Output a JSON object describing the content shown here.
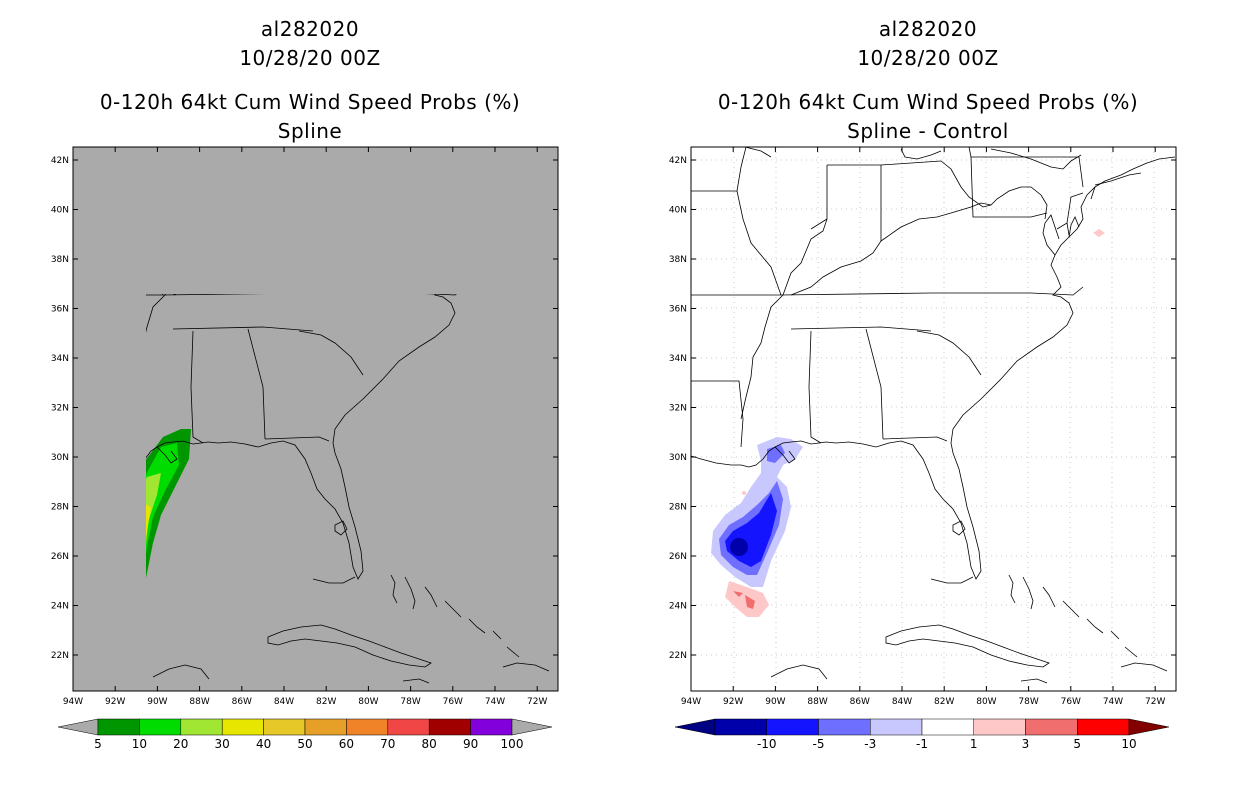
{
  "left_panel": {
    "storm_id": "al282020",
    "date": "10/28/20 00Z",
    "product": "0-120h 64kt Cum Wind Speed Probs (%)",
    "subtitle": "Spline",
    "colorbar": {
      "labels": [
        "5",
        "10",
        "20",
        "30",
        "40",
        "50",
        "60",
        "70",
        "80",
        "90",
        "100"
      ],
      "colors": [
        "#009600",
        "#00dc00",
        "#a0e632",
        "#e6e600",
        "#e6c828",
        "#e6a028",
        "#f08228",
        "#f04646",
        "#a00000",
        "#8200dc"
      ]
    }
  },
  "right_panel": {
    "storm_id": "al282020",
    "date": "10/28/20 00Z",
    "product": "0-120h 64kt Cum Wind Speed Probs (%)",
    "subtitle": "Spline - Control",
    "colorbar": {
      "labels": [
        "-10",
        "-5",
        "-3",
        "-1",
        "1",
        "3",
        "5",
        "10"
      ],
      "colors": [
        "#0000aa",
        "#1414ff",
        "#6e6eff",
        "#c8c8ff",
        "#ffffff",
        "#ffc8c8",
        "#f06e6e",
        "#ff0000"
      ]
    }
  },
  "map": {
    "lat_ticks": [
      "42N",
      "40N",
      "38N",
      "36N",
      "34N",
      "32N",
      "30N",
      "28N",
      "26N",
      "24N",
      "22N"
    ],
    "lon_ticks": [
      "94W",
      "92W",
      "90W",
      "88W",
      "86W",
      "84W",
      "82W",
      "80W",
      "78W",
      "76W",
      "74W",
      "72W"
    ],
    "land_fill_left": "#aaaaaa"
  }
}
